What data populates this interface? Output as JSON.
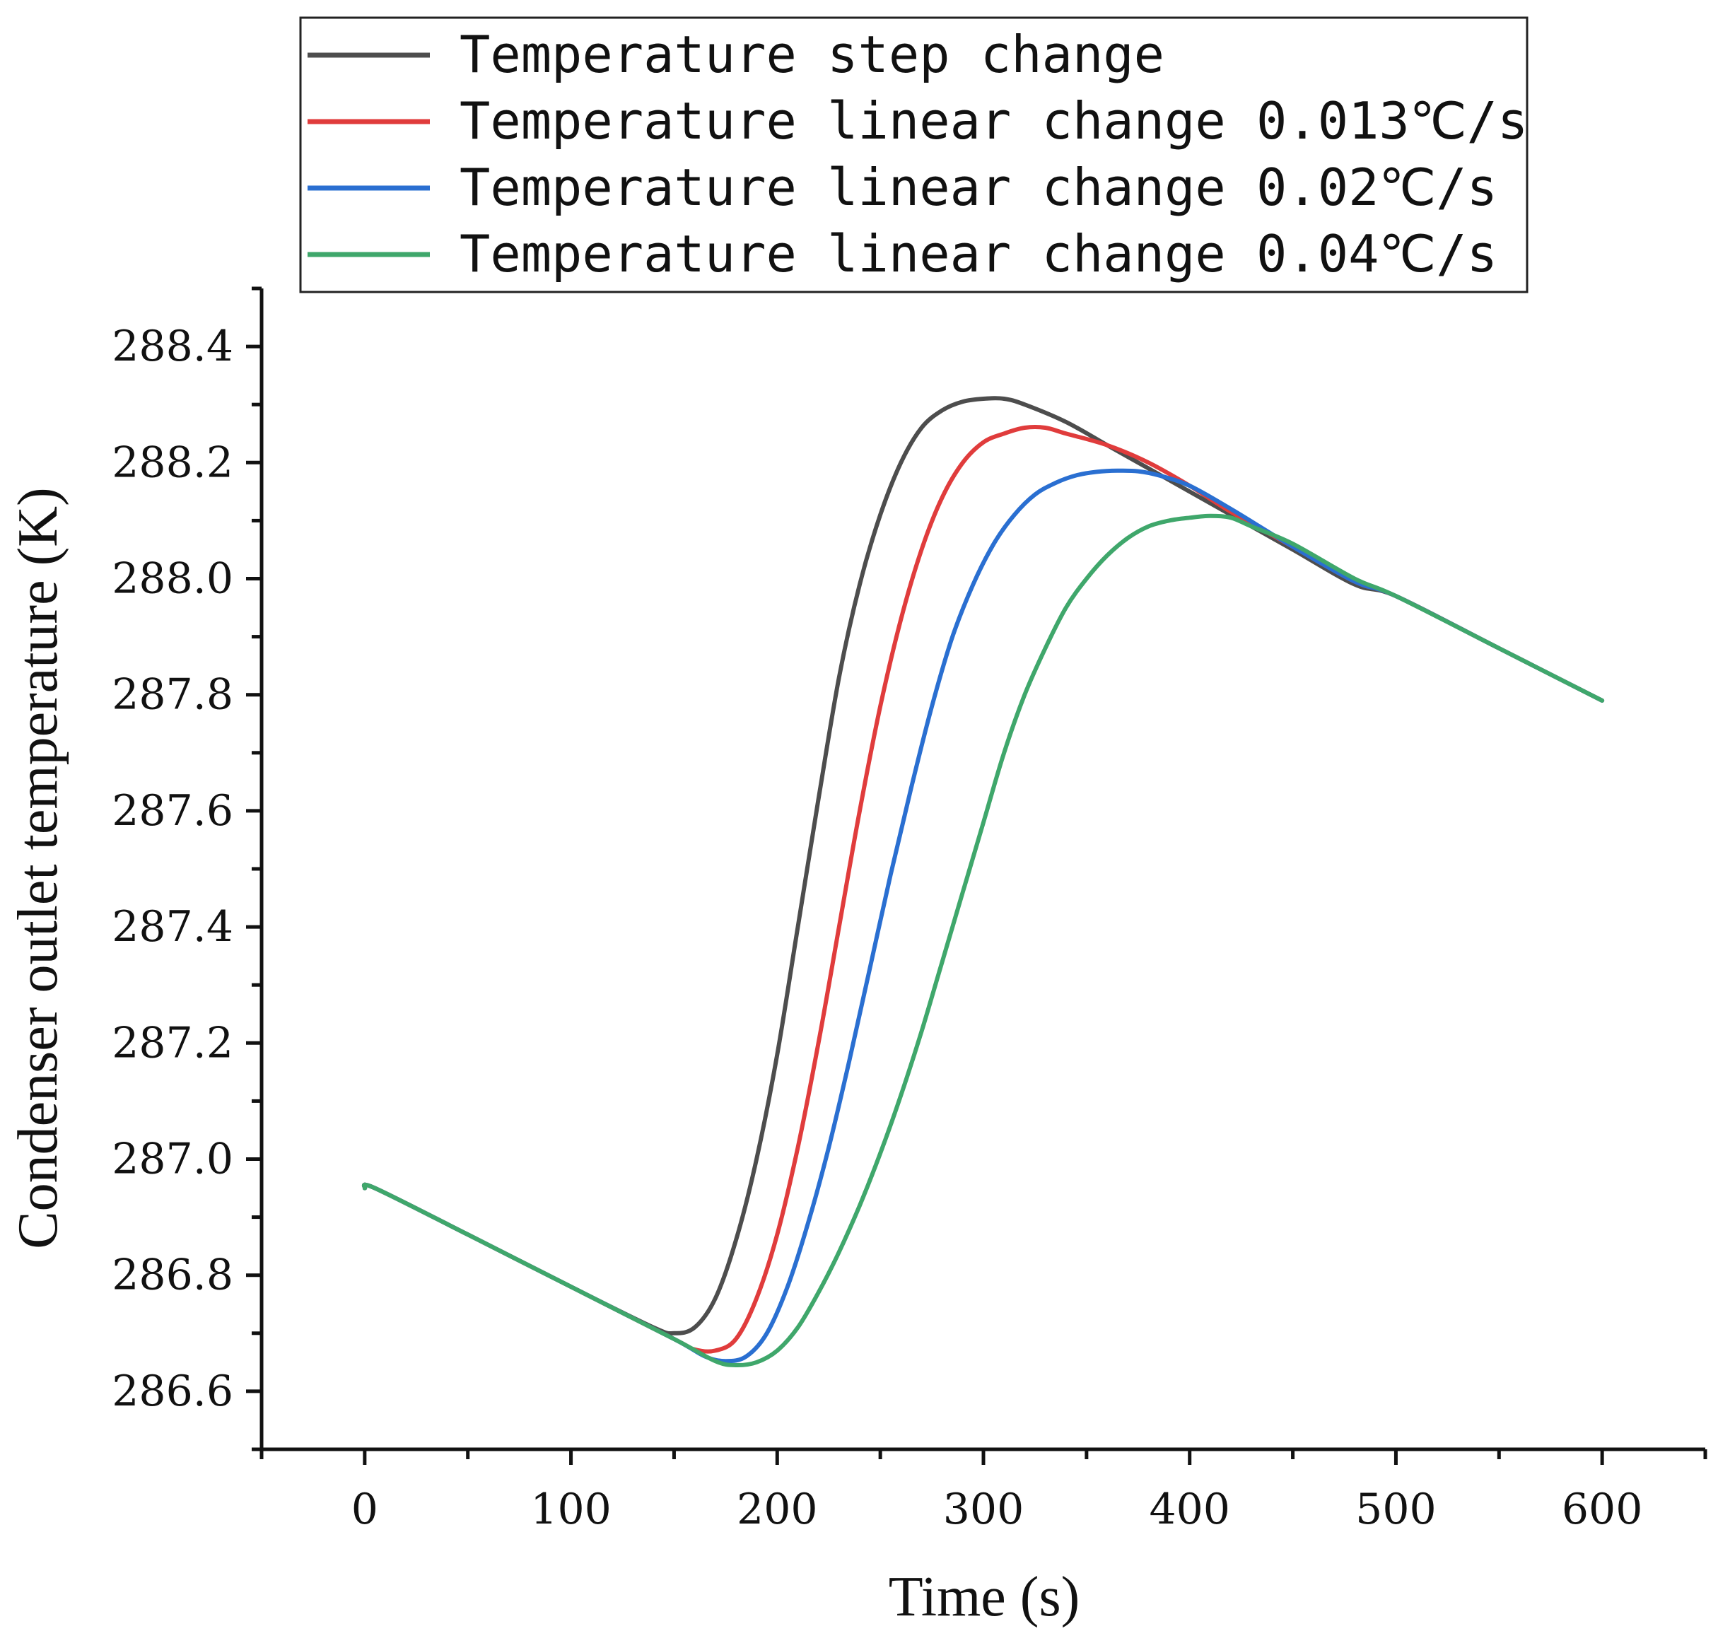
{
  "chart_data": {
    "type": "line",
    "title": "",
    "xlabel": "Time (s)",
    "ylabel": "Condenser outlet temperature (K)",
    "xlim": [
      -50,
      650
    ],
    "ylim": [
      286.5,
      288.5
    ],
    "xticks": [
      0,
      100,
      200,
      300,
      400,
      500,
      600
    ],
    "xtick_labels": [
      "0",
      "100",
      "200",
      "300",
      "400",
      "500",
      "600"
    ],
    "yticks": [
      286.6,
      286.8,
      287.0,
      287.2,
      287.4,
      287.6,
      287.8,
      288.0,
      288.2,
      288.4
    ],
    "ytick_labels": [
      "286.6",
      "286.8",
      "287.0",
      "287.2",
      "287.4",
      "287.6",
      "287.8",
      "288.0",
      "288.2",
      "288.4"
    ],
    "grid": false,
    "legend_position": "top",
    "series": [
      {
        "name": "Temperature step change",
        "color": "#4d4d4d",
        "x": [
          0,
          5,
          50,
          100,
          140,
          150,
          160,
          170,
          180,
          190,
          200,
          210,
          220,
          230,
          240,
          250,
          260,
          270,
          280,
          290,
          300,
          310,
          320,
          340,
          360,
          380,
          400,
          420,
          450,
          480,
          500,
          550,
          600
        ],
        "y": [
          286.95,
          286.95,
          286.87,
          286.78,
          286.71,
          286.7,
          286.71,
          286.76,
          286.86,
          287.0,
          287.18,
          287.4,
          287.62,
          287.83,
          287.99,
          288.11,
          288.2,
          288.26,
          288.29,
          288.305,
          288.31,
          288.31,
          288.3,
          288.27,
          288.23,
          288.19,
          288.15,
          288.11,
          288.05,
          287.99,
          287.97,
          287.88,
          287.79
        ]
      },
      {
        "name": "Temperature linear change 0.013℃/s",
        "color": "#e03c3c",
        "x": [
          0,
          5,
          50,
          100,
          150,
          160,
          170,
          180,
          190,
          200,
          210,
          220,
          230,
          240,
          250,
          260,
          270,
          280,
          290,
          300,
          310,
          320,
          330,
          340,
          360,
          380,
          400,
          420,
          450,
          480,
          500,
          550,
          600
        ],
        "y": [
          286.95,
          286.95,
          286.87,
          286.78,
          286.69,
          286.672,
          286.67,
          286.69,
          286.76,
          286.87,
          287.02,
          287.2,
          287.4,
          287.6,
          287.78,
          287.93,
          288.05,
          288.14,
          288.2,
          288.235,
          288.25,
          288.26,
          288.26,
          288.25,
          288.23,
          288.2,
          288.16,
          288.115,
          288.055,
          287.995,
          287.97,
          287.88,
          287.79
        ]
      },
      {
        "name": "Temperature linear change 0.02℃/s",
        "color": "#2a6fd1",
        "x": [
          0,
          5,
          50,
          100,
          150,
          165,
          175,
          185,
          195,
          205,
          215,
          225,
          235,
          245,
          255,
          265,
          275,
          285,
          295,
          305,
          315,
          325,
          335,
          345,
          355,
          365,
          375,
          385,
          400,
          420,
          450,
          480,
          500,
          550,
          600
        ],
        "y": [
          286.95,
          286.95,
          286.87,
          286.78,
          286.69,
          286.66,
          286.652,
          286.66,
          286.7,
          286.78,
          286.89,
          287.02,
          287.17,
          287.33,
          287.49,
          287.64,
          287.78,
          287.9,
          287.99,
          288.06,
          288.11,
          288.145,
          288.165,
          288.178,
          288.184,
          288.186,
          288.185,
          288.178,
          288.16,
          288.12,
          288.055,
          287.995,
          287.97,
          287.88,
          287.79
        ]
      },
      {
        "name": "Temperature linear change 0.04℃/s",
        "color": "#3fa76b",
        "x": [
          0,
          5,
          50,
          100,
          150,
          170,
          180,
          190,
          200,
          210,
          220,
          230,
          240,
          250,
          260,
          270,
          280,
          290,
          300,
          310,
          320,
          330,
          340,
          350,
          360,
          370,
          380,
          390,
          400,
          410,
          420,
          430,
          450,
          480,
          500,
          550,
          600
        ],
        "y": [
          286.95,
          286.95,
          286.87,
          286.78,
          286.69,
          286.652,
          286.645,
          286.65,
          286.67,
          286.71,
          286.77,
          286.84,
          286.92,
          287.01,
          287.11,
          287.22,
          287.34,
          287.46,
          287.58,
          287.7,
          287.8,
          287.88,
          287.95,
          288.0,
          288.04,
          288.07,
          288.09,
          288.1,
          288.105,
          288.108,
          288.105,
          288.09,
          288.06,
          288.0,
          287.97,
          287.88,
          287.79
        ]
      }
    ]
  }
}
